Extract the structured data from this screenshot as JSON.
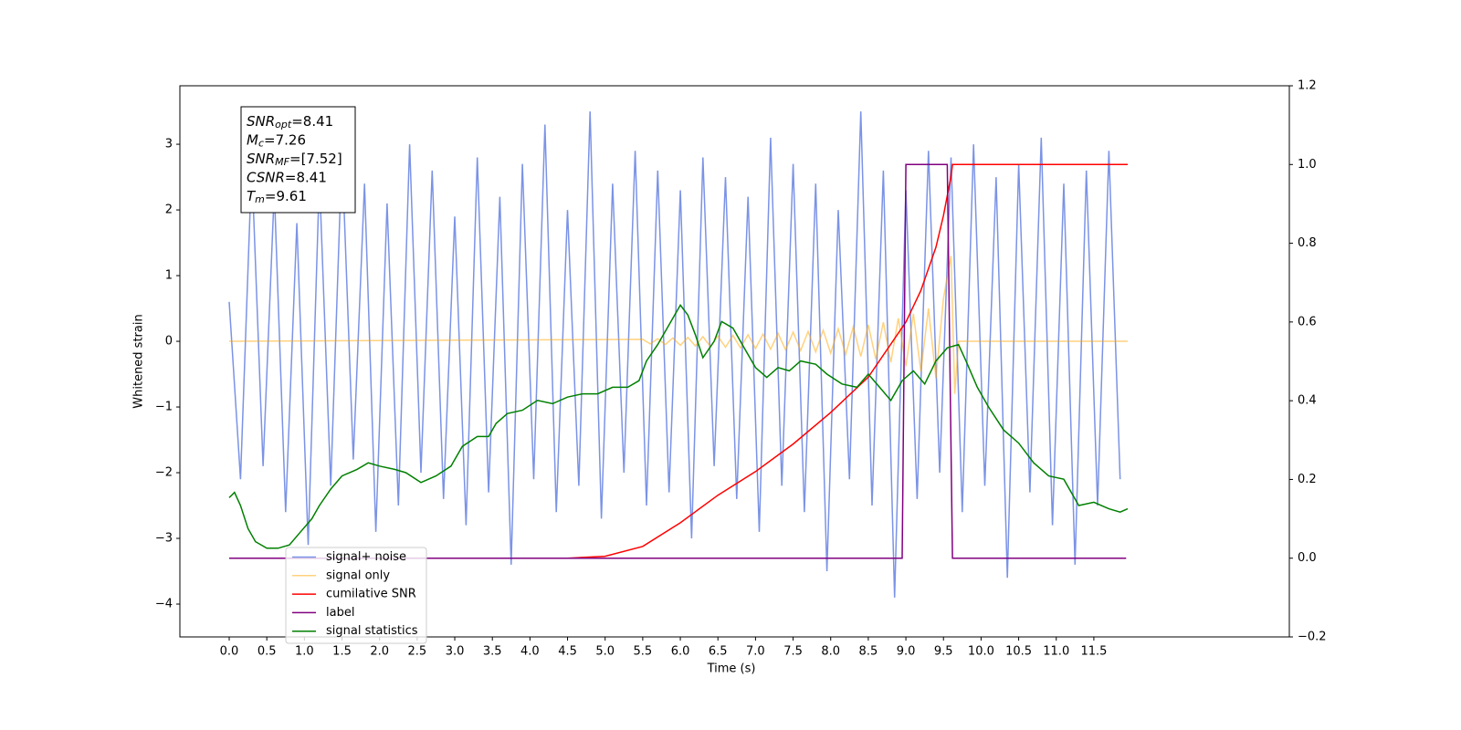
{
  "chart_data": {
    "type": "line",
    "xlabel": "Time (s)",
    "ylabel": "Whitened strain",
    "xlim": [
      -0.656,
      14.1
    ],
    "xticks": [
      {
        "value": 0,
        "label": "0.0"
      },
      0.5,
      {
        "value": 1,
        "label": "1.0"
      },
      1.5,
      {
        "value": 2,
        "label": "2.0"
      },
      2.5,
      {
        "value": 3,
        "label": "3.0"
      },
      3.5,
      {
        "value": 4,
        "label": "4.0"
      },
      4.5,
      {
        "value": 5,
        "label": "5.0"
      },
      5.5,
      {
        "value": 6,
        "label": "6.0"
      },
      6.5,
      {
        "value": 7,
        "label": "7.0"
      },
      7.5,
      {
        "value": 8,
        "label": "8.0"
      },
      8.5,
      {
        "value": 9,
        "label": "9.0"
      },
      9.5,
      {
        "value": 10,
        "label": "10.0"
      },
      10.5,
      {
        "value": 11,
        "label": "11.0"
      },
      11.5
    ],
    "ylim": [
      -4.5,
      3.89
    ],
    "yticks": [
      {
        "value": -4,
        "label": "−4"
      },
      {
        "value": -3,
        "label": "−3"
      },
      {
        "value": -2,
        "label": "−2"
      },
      {
        "value": -1,
        "label": "−1"
      },
      0,
      1,
      2,
      3
    ],
    "y2lim": [
      -0.2,
      1.2
    ],
    "y2ticks": [
      {
        "value": -0.2,
        "label": "−0.2"
      },
      {
        "value": 0,
        "label": "0.0"
      },
      0.2,
      0.4,
      0.6,
      0.8,
      {
        "value": 1,
        "label": "1.0"
      },
      1.2
    ],
    "legend": "lower left",
    "annotations": [
      {
        "main": "SNR",
        "sub": "opt",
        "rest": "=8.41"
      },
      {
        "main": "M",
        "sub": "c",
        "rest": "=7.26"
      },
      {
        "main": "SNR",
        "sub": "MF",
        "rest": "=[7.52]"
      },
      {
        "main": "CSNR",
        "sub": null,
        "rest": "=8.41"
      },
      {
        "main": "T",
        "sub": "m",
        "rest": "=9.61"
      }
    ],
    "series": [
      {
        "name": "signal+ noise",
        "color": "#7b93e6",
        "x": [
          0,
          0.15,
          0.3,
          0.45,
          0.6,
          0.75,
          0.9,
          1.05,
          1.2,
          1.35,
          1.5,
          1.65,
          1.8,
          1.95,
          2.1,
          2.25,
          2.4,
          2.55,
          2.7,
          2.85,
          3,
          3.15,
          3.3,
          3.45,
          3.6,
          3.75,
          3.9,
          4.05,
          4.2,
          4.35,
          4.5,
          4.65,
          4.8,
          4.95,
          5.1,
          5.25,
          5.4,
          5.55,
          5.7,
          5.85,
          6,
          6.15,
          6.3,
          6.45,
          6.6,
          6.75,
          6.9,
          7.05,
          7.2,
          7.35,
          7.5,
          7.65,
          7.8,
          7.95,
          8.1,
          8.25,
          8.4,
          8.55,
          8.7,
          8.85,
          9,
          9.15,
          9.3,
          9.45,
          9.6,
          9.75,
          9.9,
          10.05,
          10.2,
          10.35,
          10.5,
          10.65,
          10.8,
          10.95,
          11.1,
          11.25,
          11.4,
          11.55,
          11.7,
          11.85
        ],
        "values": [
          0.6,
          -2.1,
          2.7,
          -1.9,
          2.3,
          -2.6,
          1.8,
          -3.1,
          2.5,
          -2.2,
          2.9,
          -1.8,
          2.4,
          -2.9,
          2.1,
          -2.5,
          3.0,
          -2.0,
          2.6,
          -2.4,
          1.9,
          -2.8,
          2.8,
          -2.3,
          2.2,
          -3.4,
          2.7,
          -2.1,
          3.3,
          -2.6,
          2.0,
          -2.2,
          3.5,
          -2.7,
          2.4,
          -2.0,
          2.9,
          -2.5,
          2.6,
          -2.3,
          2.3,
          -3.0,
          2.8,
          -1.9,
          2.5,
          -2.4,
          2.2,
          -2.9,
          3.1,
          -2.2,
          2.7,
          -2.6,
          2.4,
          -3.5,
          2.0,
          -2.1,
          3.5,
          -2.5,
          2.6,
          -3.9,
          2.3,
          -2.4,
          2.9,
          -2.0,
          2.8,
          -2.6,
          3.0,
          -2.2,
          2.5,
          -3.6,
          2.7,
          -2.3,
          3.1,
          -2.8,
          2.4,
          -3.4,
          2.6,
          -2.5,
          2.9,
          -2.1
        ]
      },
      {
        "name": "signal only",
        "color": "#ffa500",
        "x": [
          0,
          5.5,
          5.6,
          5.7,
          5.8,
          5.9,
          6.0,
          6.1,
          6.2,
          6.3,
          6.4,
          6.5,
          6.6,
          6.7,
          6.8,
          6.9,
          7.0,
          7.1,
          7.2,
          7.3,
          7.4,
          7.5,
          7.6,
          7.7,
          7.8,
          7.9,
          8.0,
          8.1,
          8.2,
          8.3,
          8.4,
          8.5,
          8.6,
          8.7,
          8.8,
          8.9,
          9.0,
          9.1,
          9.2,
          9.3,
          9.4,
          9.5,
          9.6,
          9.65,
          9.7,
          11.95
        ],
        "values": [
          0,
          0.03,
          -0.04,
          0.04,
          -0.05,
          0.05,
          -0.06,
          0.06,
          -0.07,
          0.07,
          -0.08,
          0.08,
          -0.09,
          0.09,
          -0.1,
          0.1,
          -0.11,
          0.11,
          -0.12,
          0.12,
          -0.13,
          0.14,
          -0.14,
          0.15,
          -0.16,
          0.17,
          -0.18,
          0.19,
          -0.2,
          0.22,
          -0.23,
          0.25,
          -0.27,
          0.29,
          -0.32,
          0.35,
          -0.38,
          0.42,
          -0.46,
          0.5,
          -0.56,
          0.65,
          1.3,
          -0.8,
          0,
          0
        ]
      },
      {
        "name": "cumilative SNR",
        "color": "#ff0000",
        "axis": "y2",
        "x": [
          0,
          4.5,
          5.0,
          5.5,
          6.0,
          6.5,
          7.0,
          7.5,
          8.0,
          8.5,
          9.0,
          9.2,
          9.4,
          9.5,
          9.6,
          9.62,
          11.95
        ],
        "values": [
          0,
          0,
          0.005,
          0.03,
          0.09,
          0.16,
          0.22,
          0.29,
          0.37,
          0.46,
          0.6,
          0.68,
          0.79,
          0.87,
          0.97,
          1.0,
          1.0
        ]
      },
      {
        "name": "label",
        "color": "#800080",
        "axis": "y2",
        "x": [
          0,
          8.95,
          9.0,
          9.55,
          9.62,
          11.93
        ],
        "values": [
          0,
          0,
          1,
          1,
          0,
          0
        ]
      },
      {
        "name": "signal statistics",
        "color": "#008000",
        "x": [
          0,
          0.07,
          0.15,
          0.25,
          0.35,
          0.5,
          0.65,
          0.8,
          0.95,
          1.1,
          1.2,
          1.35,
          1.5,
          1.7,
          1.85,
          2.0,
          2.2,
          2.35,
          2.55,
          2.75,
          2.95,
          3.1,
          3.3,
          3.45,
          3.55,
          3.7,
          3.9,
          4.1,
          4.3,
          4.5,
          4.7,
          4.9,
          5.1,
          5.3,
          5.45,
          5.55,
          5.7,
          5.85,
          6.0,
          6.1,
          6.2,
          6.3,
          6.45,
          6.55,
          6.7,
          6.85,
          7.0,
          7.15,
          7.3,
          7.45,
          7.6,
          7.8,
          7.95,
          8.15,
          8.35,
          8.5,
          8.65,
          8.8,
          8.95,
          9.1,
          9.25,
          9.4,
          9.55,
          9.7,
          9.8,
          9.95,
          10.1,
          10.3,
          10.5,
          10.7,
          10.9,
          11.1,
          11.3,
          11.5,
          11.7,
          11.85,
          11.95
        ],
        "values": [
          -2.38,
          -2.3,
          -2.5,
          -2.85,
          -3.05,
          -3.15,
          -3.15,
          -3.1,
          -2.9,
          -2.7,
          -2.5,
          -2.25,
          -2.05,
          -1.95,
          -1.85,
          -1.9,
          -1.95,
          -2.0,
          -2.15,
          -2.05,
          -1.9,
          -1.6,
          -1.45,
          -1.45,
          -1.25,
          -1.1,
          -1.05,
          -0.9,
          -0.95,
          -0.85,
          -0.8,
          -0.8,
          -0.7,
          -0.7,
          -0.6,
          -0.3,
          -0.05,
          0.25,
          0.55,
          0.4,
          0.1,
          -0.25,
          0.0,
          0.3,
          0.2,
          -0.1,
          -0.4,
          -0.55,
          -0.4,
          -0.45,
          -0.3,
          -0.35,
          -0.5,
          -0.65,
          -0.7,
          -0.5,
          -0.7,
          -0.9,
          -0.6,
          -0.45,
          -0.65,
          -0.3,
          -0.1,
          -0.05,
          -0.3,
          -0.7,
          -1.0,
          -1.35,
          -1.55,
          -1.85,
          -2.05,
          -2.1,
          -2.5,
          -2.45,
          -2.55,
          -2.6,
          -2.55
        ]
      }
    ]
  }
}
